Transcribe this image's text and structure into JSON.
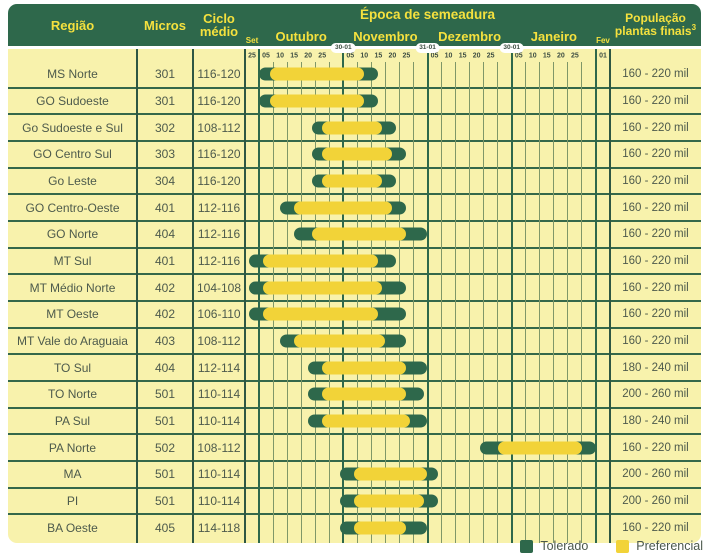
{
  "header": {
    "region_label": "Região",
    "micros_label": "Micros",
    "cycle_label": "Ciclo médio",
    "season_title": "Época de semeadura",
    "population_line1": "População",
    "population_line2": "plantas finais",
    "population_sup": "3"
  },
  "colors": {
    "header_green": "#2e684b",
    "header_text_yellow": "#f5e13e",
    "body_background": "#f8f2ac",
    "bar_tolerado": "#2e684b",
    "bar_preferencial": "#f2d338",
    "grid_minor": "#7f9768",
    "grid_major": "#2e684b",
    "body_text": "#4d5a4c",
    "badge_background": "#ffffff"
  },
  "chart_data": {
    "type": "gantt",
    "title": "Época de semeadura",
    "legend_position": "bottom-right",
    "grid": true,
    "timeline": {
      "column_days": 5,
      "total_columns": 26,
      "start_label": "Set 25",
      "end_label": "Fev 01",
      "months": [
        {
          "label": "Set",
          "cols": 1,
          "ticks": [
            "25"
          ]
        },
        {
          "label": "Outubro",
          "cols": 6,
          "ticks": [
            "05",
            "10",
            "15",
            "20",
            "25"
          ]
        },
        {
          "label": "Novembro",
          "cols": 6,
          "ticks": [
            "05",
            "10",
            "15",
            "20",
            "25"
          ]
        },
        {
          "label": "Dezembro",
          "cols": 6,
          "ticks": [
            "05",
            "10",
            "15",
            "20",
            "25"
          ]
        },
        {
          "label": "Janeiro",
          "cols": 6,
          "ticks": [
            "05",
            "10",
            "15",
            "20",
            "25"
          ]
        },
        {
          "label": "Fev",
          "cols": 1,
          "ticks": [
            "01"
          ]
        }
      ],
      "boundary_badges": [
        {
          "text": "30-01",
          "unit": 7
        },
        {
          "text": "31-01",
          "unit": 13
        },
        {
          "text": "30-01",
          "unit": 19
        }
      ],
      "unit_note": "bar start/end expressed in 5-day columns; 0 = Sep 25, 1 = Oct 01, 7 = Nov 01, 13 = Dez 01, 19 = Jan 01, 26 = Feb 01"
    },
    "legend": [
      {
        "key": "tol",
        "label": "Tolerado",
        "color": "#2e684b"
      },
      {
        "key": "pref",
        "label": "Preferencial",
        "color": "#f2d338"
      }
    ],
    "rows": [
      {
        "region": "MS Norte",
        "micros": "301",
        "cycle": "116-120",
        "population": "160 - 220 mil",
        "tolerado": [
          1.0,
          9.5
        ],
        "preferencial": [
          1.75,
          8.5
        ]
      },
      {
        "region": "GO Sudoeste",
        "micros": "301",
        "cycle": "116-120",
        "population": "160 - 220 mil",
        "tolerado": [
          1.0,
          9.5
        ],
        "preferencial": [
          1.75,
          8.5
        ]
      },
      {
        "region": "Go Sudoeste e Sul",
        "micros": "302",
        "cycle": "108-112",
        "population": "160 - 220 mil",
        "tolerado": [
          4.75,
          10.75
        ],
        "preferencial": [
          5.5,
          9.75
        ]
      },
      {
        "region": "GO Centro Sul",
        "micros": "303",
        "cycle": "116-120",
        "population": "160 - 220 mil",
        "tolerado": [
          4.75,
          11.5
        ],
        "preferencial": [
          5.5,
          10.5
        ]
      },
      {
        "region": "Go Leste",
        "micros": "304",
        "cycle": "116-120",
        "population": "160 - 220 mil",
        "tolerado": [
          4.75,
          10.75
        ],
        "preferencial": [
          5.5,
          9.75
        ]
      },
      {
        "region": "GO Centro-Oeste",
        "micros": "401",
        "cycle": "112-116",
        "population": "160 - 220 mil",
        "tolerado": [
          2.5,
          11.5
        ],
        "preferencial": [
          3.5,
          10.5
        ]
      },
      {
        "region": "GO Norte",
        "micros": "404",
        "cycle": "112-116",
        "population": "160 - 220 mil",
        "tolerado": [
          3.5,
          13.0
        ],
        "preferencial": [
          4.75,
          11.5
        ]
      },
      {
        "region": "MT Sul",
        "micros": "401",
        "cycle": "112-116",
        "population": "160 - 220 mil",
        "tolerado": [
          0.3,
          10.75
        ],
        "preferencial": [
          1.25,
          9.5
        ]
      },
      {
        "region": "MT Médio Norte",
        "micros": "402",
        "cycle": "104-108",
        "population": "160 - 220 mil",
        "tolerado": [
          0.3,
          11.5
        ],
        "preferencial": [
          1.25,
          9.75
        ]
      },
      {
        "region": "MT Oeste",
        "micros": "402",
        "cycle": "106-110",
        "population": "160 - 220 mil",
        "tolerado": [
          0.3,
          11.5
        ],
        "preferencial": [
          1.25,
          9.5
        ]
      },
      {
        "region": "MT Vale do Araguaia",
        "micros": "403",
        "cycle": "108-112",
        "population": "160 - 220 mil",
        "tolerado": [
          2.5,
          11.5
        ],
        "preferencial": [
          3.5,
          10.0
        ]
      },
      {
        "region": "TO Sul",
        "micros": "404",
        "cycle": "112-114",
        "population": "180 - 240 mil",
        "tolerado": [
          4.5,
          13.0
        ],
        "preferencial": [
          5.5,
          11.5
        ]
      },
      {
        "region": "TO Norte",
        "micros": "501",
        "cycle": "110-114",
        "population": "200 - 260 mil",
        "tolerado": [
          4.5,
          12.75
        ],
        "preferencial": [
          5.5,
          11.5
        ]
      },
      {
        "region": "PA Sul",
        "micros": "501",
        "cycle": "110-114",
        "population": "180 - 240 mil",
        "tolerado": [
          4.5,
          13.0
        ],
        "preferencial": [
          5.5,
          11.75
        ]
      },
      {
        "region": "PA Norte",
        "micros": "502",
        "cycle": "108-112",
        "population": "160 - 220 mil",
        "tolerado": [
          16.75,
          25.0
        ],
        "preferencial": [
          18.0,
          24.0
        ]
      },
      {
        "region": "MA",
        "micros": "501",
        "cycle": "110-114",
        "population": "200 - 260 mil",
        "tolerado": [
          6.75,
          13.75
        ],
        "preferencial": [
          7.75,
          13.0
        ]
      },
      {
        "region": "PI",
        "micros": "501",
        "cycle": "110-114",
        "population": "200 - 260 mil",
        "tolerado": [
          6.75,
          13.75
        ],
        "preferencial": [
          7.75,
          12.75
        ]
      },
      {
        "region": "BA Oeste",
        "micros": "405",
        "cycle": "114-118",
        "population": "160 - 220 mil",
        "tolerado": [
          6.75,
          13.0
        ],
        "preferencial": [
          7.75,
          11.5
        ]
      }
    ]
  }
}
